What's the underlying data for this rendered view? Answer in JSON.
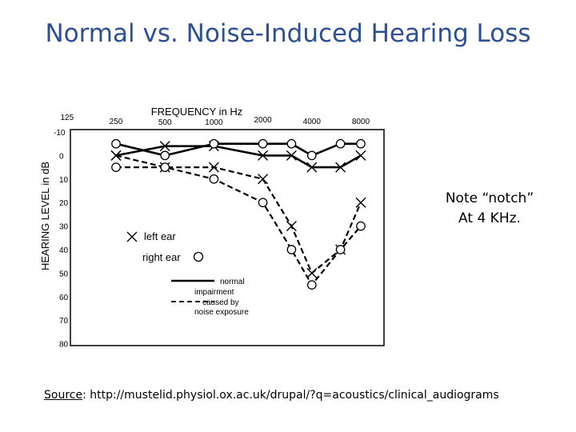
{
  "slide": {
    "title": "Normal vs. Noise-Induced Hearing Loss",
    "note_line1": "Note “notch”",
    "note_line2": "At 4 KHz.",
    "source_label": "Source",
    "source_text": ": http://mustelid.physiol.ox.ac.uk/drupal/?q=acoustics/clinical_audiograms"
  },
  "chart_data": {
    "type": "line",
    "title": "",
    "xlabel": "FREQUENCY in Hz",
    "ylabel": "HEARING LEVEL in dB",
    "categories": [
      "125",
      "250",
      "500",
      "1000",
      "2000",
      "4000",
      "8000"
    ],
    "y_ticks": [
      "-10",
      "0",
      "10",
      "20",
      "30",
      "40",
      "50",
      "60",
      "70",
      "80"
    ],
    "ylim": [
      -10,
      80
    ],
    "y_inverted": true,
    "grid": false,
    "legend": {
      "left_ear_label": "left ear",
      "right_ear_label": "right ear",
      "normal_label": "normal",
      "impairment_label": "impairment",
      "caused_label": "caused by",
      "noise_label": "noise exposure"
    },
    "series": [
      {
        "name": "left ear",
        "group": "normal",
        "marker": "x",
        "style": "solid",
        "x": [
          250,
          500,
          1000,
          2000,
          3000,
          4000,
          6000,
          8000
        ],
        "y": [
          0,
          -4,
          -4,
          0,
          0,
          5,
          5,
          0
        ]
      },
      {
        "name": "right ear",
        "group": "normal",
        "marker": "o",
        "style": "solid",
        "x": [
          250,
          500,
          1000,
          2000,
          3000,
          4000,
          6000,
          8000
        ],
        "y": [
          -5,
          0,
          -5,
          -5,
          -5,
          0,
          -5,
          -5
        ]
      },
      {
        "name": "left ear",
        "group": "noise exposure",
        "marker": "x",
        "style": "dashed",
        "x": [
          250,
          500,
          1000,
          2000,
          3000,
          4000,
          6000,
          8000
        ],
        "y": [
          0,
          5,
          5,
          10,
          30,
          50,
          40,
          20
        ]
      },
      {
        "name": "right ear",
        "group": "noise exposure",
        "marker": "o",
        "style": "dashed",
        "x": [
          250,
          500,
          1000,
          2000,
          3000,
          4000,
          6000,
          8000
        ],
        "y": [
          5,
          5,
          10,
          20,
          40,
          55,
          40,
          30
        ]
      }
    ],
    "colors": {
      "ink": "#000000",
      "title": "#2e4f94"
    }
  }
}
